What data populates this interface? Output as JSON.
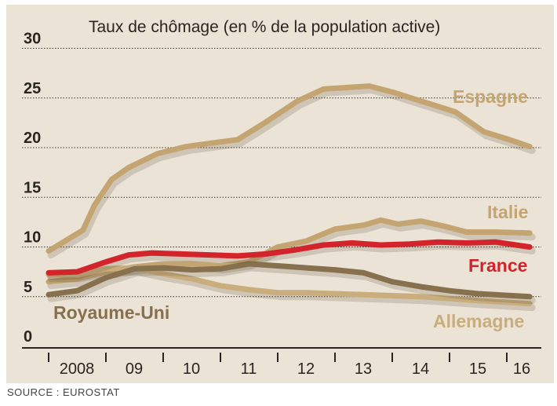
{
  "chart_data": {
    "type": "line",
    "title": "Taux de chômage (en % de la population active)",
    "xlabel": "",
    "ylabel": "",
    "ylim": [
      0,
      30
    ],
    "xlim": [
      2008,
      2016.5
    ],
    "yticks": [
      "0",
      "5",
      "10",
      "15",
      "20",
      "25",
      "30"
    ],
    "xticks": [
      "2008",
      "09",
      "10",
      "11",
      "12",
      "13",
      "14",
      "15",
      "16"
    ],
    "grid": true,
    "series": [
      {
        "name": "Espagne",
        "color": "#c4a572",
        "x": [
          2008.0,
          2008.6,
          2008.8,
          2009.1,
          2009.4,
          2009.9,
          2010.4,
          2010.9,
          2011.3,
          2011.8,
          2012.35,
          2012.8,
          2013.6,
          2014.0,
          2014.55,
          2015.1,
          2015.6,
          2016.05,
          2016.4
        ],
        "y": [
          9.6,
          11.7,
          14.2,
          16.8,
          18.0,
          19.4,
          20.1,
          20.5,
          20.8,
          22.6,
          24.7,
          25.9,
          26.2,
          25.6,
          24.6,
          23.6,
          21.6,
          20.8,
          20.1
        ]
      },
      {
        "name": "Italie",
        "color": "#c4a572",
        "x": [
          2008.0,
          2008.5,
          2009.0,
          2009.5,
          2010.0,
          2010.5,
          2011.0,
          2011.5,
          2012.0,
          2012.5,
          2013.0,
          2013.5,
          2013.8,
          2014.1,
          2014.5,
          2014.9,
          2015.3,
          2015.8,
          2016.4
        ],
        "y": [
          6.5,
          6.8,
          7.5,
          8.0,
          8.3,
          8.3,
          8.1,
          8.5,
          10.0,
          10.6,
          11.8,
          12.2,
          12.7,
          12.3,
          12.6,
          12.1,
          11.5,
          11.5,
          11.4
        ]
      },
      {
        "name": "Allemagne",
        "color": "#c9ad7d",
        "x": [
          2008.0,
          2008.5,
          2009.0,
          2009.5,
          2010.0,
          2010.5,
          2011.0,
          2011.5,
          2012.0,
          2012.5,
          2013.0,
          2013.5,
          2014.0,
          2014.5,
          2015.0,
          2015.5,
          2016.4
        ],
        "y": [
          7.2,
          7.2,
          7.8,
          7.9,
          7.3,
          6.8,
          6.1,
          5.7,
          5.4,
          5.4,
          5.3,
          5.2,
          5.1,
          5.0,
          4.8,
          4.6,
          4.3
        ]
      },
      {
        "name": "Royaume-Uni",
        "color": "#86704e",
        "x": [
          2008.0,
          2008.5,
          2009.0,
          2009.5,
          2010.0,
          2010.5,
          2011.0,
          2011.5,
          2012.0,
          2012.5,
          2013.0,
          2013.5,
          2014.0,
          2014.5,
          2015.0,
          2015.5,
          2016.4
        ],
        "y": [
          5.2,
          5.6,
          6.9,
          7.8,
          7.9,
          7.7,
          7.8,
          8.3,
          8.1,
          7.9,
          7.7,
          7.4,
          6.5,
          6.0,
          5.6,
          5.3,
          5.0
        ]
      },
      {
        "name": "France",
        "color": "#d3242c",
        "x": [
          2008.0,
          2008.5,
          2009.0,
          2009.4,
          2009.8,
          2010.3,
          2010.8,
          2011.3,
          2011.8,
          2012.3,
          2012.8,
          2013.3,
          2013.8,
          2014.3,
          2014.8,
          2015.3,
          2015.8,
          2016.4
        ],
        "y": [
          7.4,
          7.5,
          8.5,
          9.2,
          9.4,
          9.3,
          9.2,
          9.1,
          9.3,
          9.7,
          10.2,
          10.4,
          10.2,
          10.3,
          10.5,
          10.4,
          10.5,
          10.0
        ]
      }
    ]
  },
  "source": "SOURCE : EUROSTAT"
}
